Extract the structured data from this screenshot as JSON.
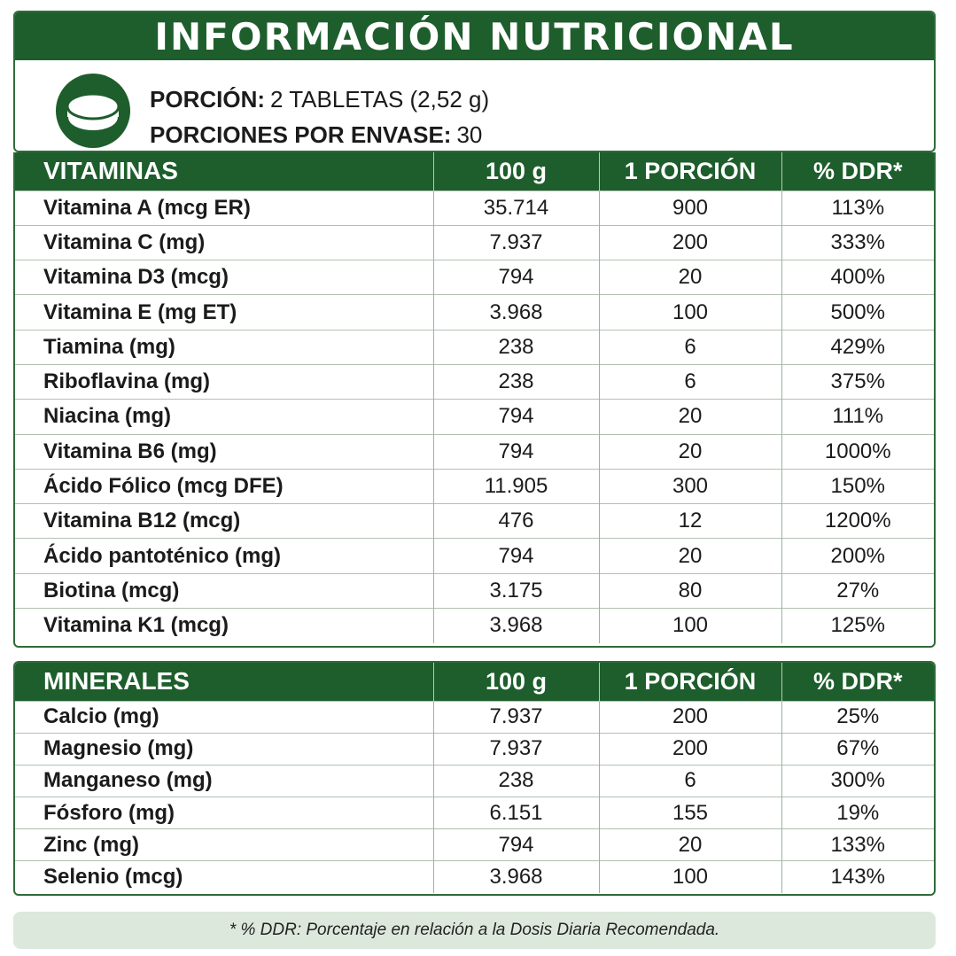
{
  "title": "INFORMACIÓN NUTRICIONAL",
  "serving": {
    "portion_label": "PORCIÓN:",
    "portion_value": "2 TABLETAS (2,52 g)",
    "servings_label": "PORCIONES POR ENVASE:",
    "servings_value": "30"
  },
  "vitamins": {
    "headers": [
      "VITAMINAS",
      "100 g",
      "1 PORCIÓN",
      "% DDR*"
    ],
    "rows": [
      [
        "Vitamina A (mcg ER)",
        "35.714",
        "900",
        "113%"
      ],
      [
        "Vitamina C (mg)",
        "7.937",
        "200",
        "333%"
      ],
      [
        "Vitamina D3 (mcg)",
        "794",
        "20",
        "400%"
      ],
      [
        "Vitamina E (mg ET)",
        "3.968",
        "100",
        "500%"
      ],
      [
        "Tiamina (mg)",
        "238",
        "6",
        "429%"
      ],
      [
        "Riboflavina (mg)",
        "238",
        "6",
        "375%"
      ],
      [
        "Niacina (mg)",
        "794",
        "20",
        "111%"
      ],
      [
        "Vitamina B6 (mg)",
        "794",
        "20",
        "1000%"
      ],
      [
        "Ácido Fólico (mcg DFE)",
        "11.905",
        "300",
        "150%"
      ],
      [
        "Vitamina B12 (mcg)",
        "476",
        "12",
        "1200%"
      ],
      [
        "Ácido pantoténico (mg)",
        "794",
        "20",
        "200%"
      ],
      [
        "Biotina (mcg)",
        "3.175",
        "80",
        "27%"
      ],
      [
        "Vitamina K1 (mcg)",
        "3.968",
        "100",
        "125%"
      ]
    ]
  },
  "minerals": {
    "headers": [
      "MINERALES",
      "100 g",
      "1 PORCIÓN",
      "% DDR*"
    ],
    "rows": [
      [
        "Calcio (mg)",
        "7.937",
        "200",
        "25%"
      ],
      [
        "Magnesio (mg)",
        "7.937",
        "200",
        "67%"
      ],
      [
        "Manganeso (mg)",
        "238",
        "6",
        "300%"
      ],
      [
        "Fósforo (mg)",
        "6.151",
        "155",
        "19%"
      ],
      [
        "Zinc (mg)",
        "794",
        "20",
        "133%"
      ],
      [
        "Selenio (mcg)",
        "3.968",
        "100",
        "143%"
      ]
    ]
  },
  "footnote": "* % DDR: Porcentaje en relación a la Dosis Diaria Recomendada.",
  "icons": {
    "tablet": "tablet-icon"
  },
  "colors": {
    "brand_green": "#1e5e2c",
    "border_green": "#2f6b3a",
    "footnote_bg": "#dde8dd"
  }
}
